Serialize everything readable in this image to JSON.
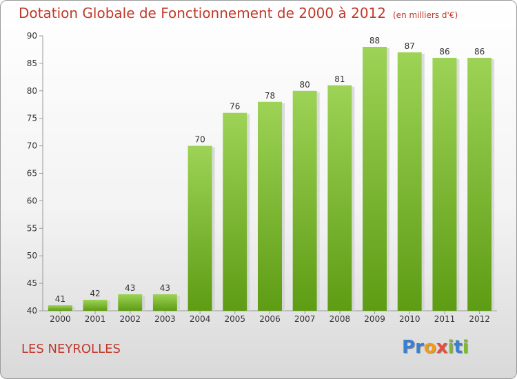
{
  "header": {
    "title": "Dotation Globale de Fonctionnement de 2000 à 2012",
    "subtitle": "(en milliers d'€)"
  },
  "footer": {
    "commune": "LES NEYROLLES",
    "logo_letters": [
      "P",
      "r",
      "o",
      "x",
      "i",
      "t",
      "i"
    ],
    "logo_colors": [
      "#3a7fd0",
      "#3a7fd0",
      "#f39c12",
      "#e74c3c",
      "#7dbb2c",
      "#3a7fd0",
      "#7dbb2c"
    ]
  },
  "chart_data": {
    "type": "bar",
    "title": "Dotation Globale de Fonctionnement de 2000 à 2012",
    "subtitle": "(en milliers d'€)",
    "categories": [
      "2000",
      "2001",
      "2002",
      "2003",
      "2004",
      "2005",
      "2006",
      "2007",
      "2008",
      "2009",
      "2010",
      "2011",
      "2012"
    ],
    "values": [
      41,
      42,
      43,
      43,
      70,
      76,
      78,
      80,
      81,
      88,
      87,
      86,
      86
    ],
    "ylim": [
      40,
      90
    ],
    "yticks": [
      40,
      45,
      50,
      55,
      60,
      65,
      70,
      75,
      80,
      85,
      90
    ],
    "xlabel": "",
    "ylabel": "",
    "grid": false,
    "legend": "none",
    "bar_color": "#7dbb2c"
  }
}
